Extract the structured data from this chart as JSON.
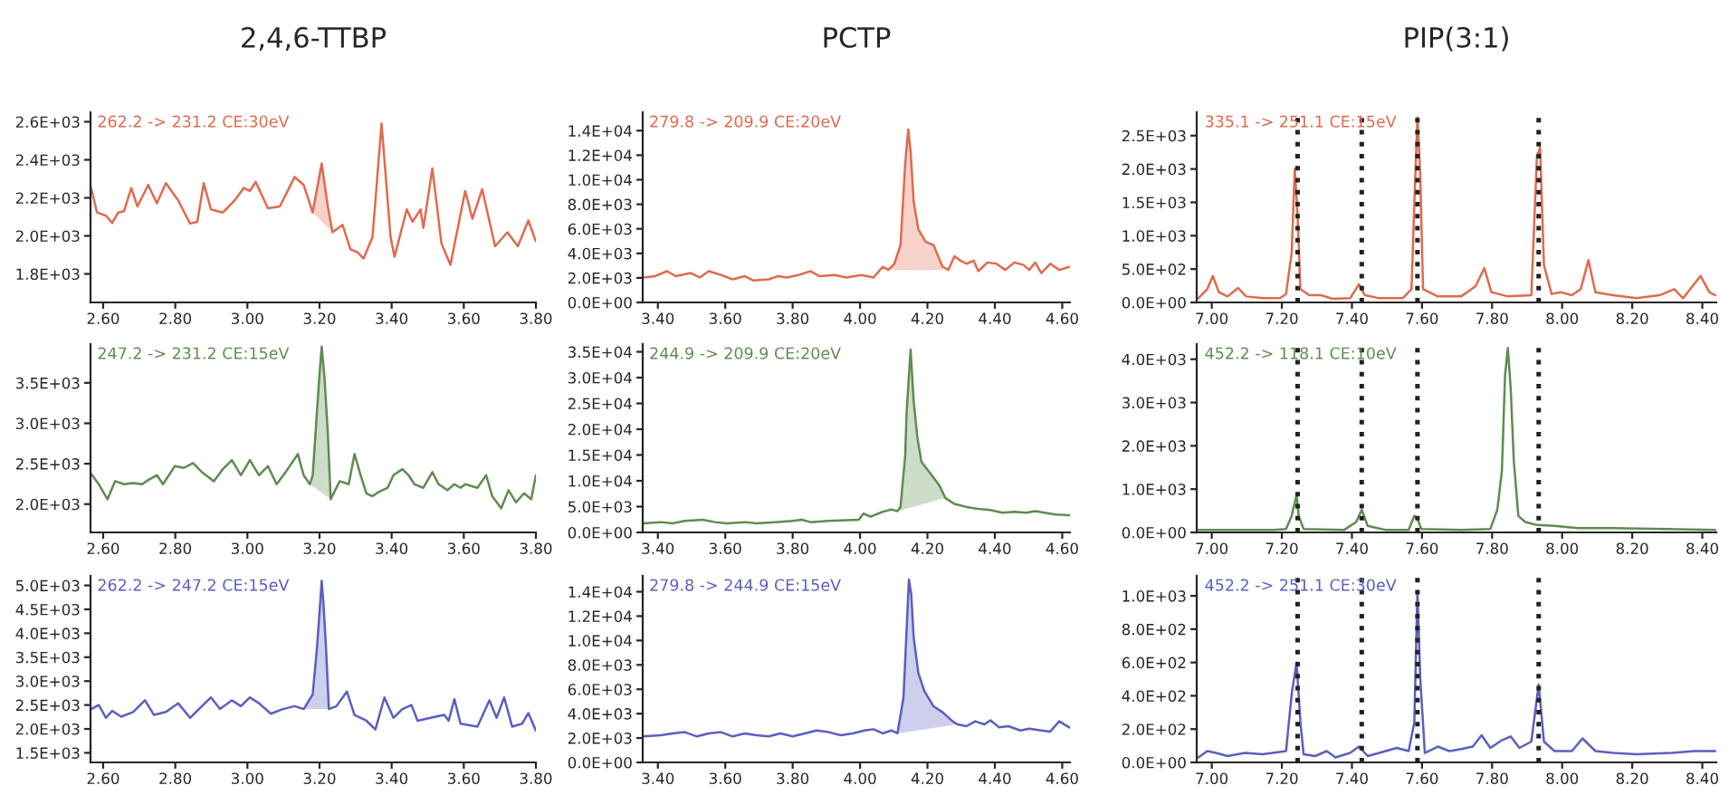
{
  "chart_data": [
    {
      "type": "line",
      "title": "2,4,6-TTBP",
      "annotations": [
        "262.2 -> 231.2 CE:30eV"
      ],
      "xlim": [
        2.565,
        3.8
      ],
      "ylim": [
        1650,
        2650
      ],
      "xticks": [
        {
          "value": 2.6,
          "label": "2.60"
        },
        {
          "value": 2.8,
          "label": "2.80"
        },
        {
          "value": 3.0,
          "label": "3.00"
        },
        {
          "value": 3.2,
          "label": "3.20"
        },
        {
          "value": 3.4,
          "label": "3.40"
        },
        {
          "value": 3.6,
          "label": "3.60"
        },
        {
          "value": 3.8,
          "label": "3.80"
        }
      ],
      "yticks": [
        {
          "value": 1800,
          "label": "1.8E+03"
        },
        {
          "value": 2000,
          "label": "2.0E+03"
        },
        {
          "value": 2200,
          "label": "2.2E+03"
        },
        {
          "value": 2400,
          "label": "2.4E+03"
        },
        {
          "value": 2600,
          "label": "2.6E+03"
        }
      ],
      "x": [
        2.567,
        2.583,
        2.608,
        2.625,
        2.642,
        2.658,
        2.678,
        2.695,
        2.725,
        2.749,
        2.774,
        2.808,
        2.841,
        2.861,
        2.879,
        2.899,
        2.932,
        2.965,
        2.99,
        3.007,
        3.023,
        3.057,
        3.09,
        3.131,
        3.156,
        3.181,
        3.206,
        3.223,
        3.236,
        3.264,
        3.286,
        3.306,
        3.322,
        3.347,
        3.372,
        3.397,
        3.408,
        3.442,
        3.458,
        3.48,
        3.488,
        3.513,
        3.538,
        3.563,
        3.604,
        3.624,
        3.651,
        3.687,
        3.721,
        3.75,
        3.779,
        3.8
      ],
      "series": [
        {
          "color": "#e06a4e",
          "values": [
            2250,
            2123,
            2106,
            2068,
            2123,
            2130,
            2252,
            2155,
            2268,
            2171,
            2277,
            2187,
            2065,
            2074,
            2277,
            2139,
            2123,
            2187,
            2252,
            2236,
            2284,
            2145,
            2155,
            2310,
            2268,
            2123,
            2381,
            2155,
            2019,
            2058,
            1929,
            1913,
            1881,
            1994,
            2590,
            1994,
            1890,
            2139,
            2074,
            2139,
            2042,
            2355,
            1961,
            1848,
            2236,
            2090,
            2245,
            1945,
            2019,
            1945,
            2081,
            1971
          ],
          "lower": [
            null,
            null,
            null,
            null,
            null,
            null,
            null,
            null,
            null,
            null,
            null,
            null,
            null,
            null,
            null,
            null,
            null,
            null,
            null,
            null,
            null,
            null,
            null,
            null,
            null,
            2123,
            2076,
            2044,
            2019,
            null,
            null,
            null,
            null,
            null,
            null,
            null,
            null,
            null,
            null,
            null,
            null,
            null,
            null,
            null,
            null,
            null,
            null,
            null,
            null,
            null,
            null,
            null
          ],
          "upper": [
            null,
            null,
            null,
            null,
            null,
            null,
            null,
            null,
            null,
            null,
            null,
            null,
            null,
            null,
            null,
            null,
            null,
            null,
            null,
            null,
            null,
            null,
            null,
            null,
            null,
            2123,
            2381,
            2155,
            2019,
            null,
            null,
            null,
            null,
            null,
            null,
            null,
            null,
            null,
            null,
            null,
            null,
            null,
            null,
            null,
            null,
            null,
            null,
            null,
            null,
            null,
            null,
            null
          ]
        }
      ]
    },
    {
      "type": "line",
      "title": "PCTP",
      "annotations": [
        "279.8 -> 209.9 CE:20eV"
      ],
      "xlim": [
        3.355,
        4.623
      ],
      "ylim": [
        0,
        15500
      ],
      "xticks": [
        {
          "value": 3.4,
          "label": "3.40"
        },
        {
          "value": 3.6,
          "label": "3.60"
        },
        {
          "value": 3.8,
          "label": "3.80"
        },
        {
          "value": 4.0,
          "label": "4.00"
        },
        {
          "value": 4.2,
          "label": "4.20"
        },
        {
          "value": 4.4,
          "label": "4.40"
        },
        {
          "value": 4.6,
          "label": "4.60"
        }
      ],
      "yticks": [
        {
          "value": 0,
          "label": "0.0E+00"
        },
        {
          "value": 2000,
          "label": "2.0E+03"
        },
        {
          "value": 4000,
          "label": "4.0E+03"
        },
        {
          "value": 6000,
          "label": "6.0E+03"
        },
        {
          "value": 8000,
          "label": "8.0E+03"
        },
        {
          "value": 10000,
          "label": "1.0E+04"
        },
        {
          "value": 12000,
          "label": "1.2E+04"
        },
        {
          "value": 14000,
          "label": "1.4E+04"
        }
      ],
      "x": [
        3.356,
        3.391,
        3.427,
        3.453,
        3.498,
        3.524,
        3.551,
        3.587,
        3.622,
        3.658,
        3.684,
        3.729,
        3.756,
        3.782,
        3.818,
        3.853,
        3.88,
        3.924,
        3.96,
        4.004,
        4.04,
        4.067,
        4.084,
        4.102,
        4.12,
        4.134,
        4.143,
        4.15,
        4.159,
        4.173,
        4.195,
        4.218,
        4.245,
        4.262,
        4.28,
        4.298,
        4.316,
        4.337,
        4.351,
        4.378,
        4.405,
        4.431,
        4.458,
        4.485,
        4.502,
        4.52,
        4.538,
        4.565,
        4.591,
        4.621
      ],
      "series": [
        {
          "color": "#e06a4e",
          "values": [
            2036,
            2138,
            2545,
            2138,
            2392,
            2036,
            2545,
            2240,
            1883,
            2138,
            1782,
            1883,
            2138,
            2036,
            2240,
            2545,
            2138,
            2240,
            2036,
            2240,
            2036,
            2901,
            2647,
            3156,
            4683,
            11300,
            14100,
            12318,
            8246,
            5955,
            4937,
            4683,
            2901,
            2647,
            3767,
            3410,
            3156,
            3410,
            2545,
            3257,
            3156,
            2647,
            3257,
            3054,
            2647,
            3257,
            2392,
            3156,
            2647,
            2901
          ],
          "lower": [
            null,
            null,
            null,
            null,
            null,
            null,
            null,
            null,
            null,
            null,
            null,
            null,
            null,
            null,
            null,
            null,
            null,
            null,
            null,
            null,
            null,
            null,
            2640,
            2640,
            2640,
            2640,
            2640,
            2640,
            2640,
            2640,
            2640,
            2640,
            2640,
            null,
            null,
            null,
            null,
            null,
            null,
            null,
            null,
            null,
            null,
            null,
            null,
            null,
            null,
            null,
            null,
            null
          ],
          "upper": [
            null,
            null,
            null,
            null,
            null,
            null,
            null,
            null,
            null,
            null,
            null,
            null,
            null,
            null,
            null,
            null,
            null,
            null,
            null,
            null,
            null,
            null,
            2647,
            3156,
            4683,
            11300,
            14100,
            12318,
            8246,
            5955,
            4937,
            4683,
            2901,
            null,
            null,
            null,
            null,
            null,
            null,
            null,
            null,
            null,
            null,
            null,
            null,
            null,
            null,
            null,
            null,
            null
          ]
        }
      ]
    },
    {
      "type": "line",
      "title": "PIP(3:1)",
      "annotations": [
        "335.1 -> 251.1 CE:15eV"
      ],
      "xlim": [
        6.957,
        8.44
      ],
      "ylim": [
        0,
        2850
      ],
      "xticks": [
        {
          "value": 7.0,
          "label": "7.00"
        },
        {
          "value": 7.2,
          "label": "7.20"
        },
        {
          "value": 7.4,
          "label": "7.40"
        },
        {
          "value": 7.6,
          "label": "7.60"
        },
        {
          "value": 7.8,
          "label": "7.80"
        },
        {
          "value": 8.0,
          "label": "8.00"
        },
        {
          "value": 8.2,
          "label": "8.20"
        },
        {
          "value": 8.4,
          "label": "8.40"
        }
      ],
      "yticks": [
        {
          "value": 0,
          "label": "0.0E+00"
        },
        {
          "value": 500,
          "label": "5.0E+02"
        },
        {
          "value": 1000,
          "label": "1.0E+03"
        },
        {
          "value": 1500,
          "label": "1.5E+03"
        },
        {
          "value": 2000,
          "label": "2.0E+03"
        },
        {
          "value": 2500,
          "label": "2.5E+03"
        }
      ],
      "ref_lines": [
        {
          "axis": "x",
          "value": 7.245,
          "color": "#222222",
          "line_style": "dotted"
        },
        {
          "axis": "x",
          "value": 7.428,
          "color": "#222222",
          "line_style": "dotted"
        },
        {
          "axis": "x",
          "value": 7.587,
          "color": "#222222",
          "line_style": "dotted"
        },
        {
          "axis": "x",
          "value": 7.933,
          "color": "#222222",
          "line_style": "dotted"
        }
      ],
      "x": [
        6.962,
        6.987,
        7.003,
        7.02,
        7.045,
        7.075,
        7.098,
        7.145,
        7.195,
        7.212,
        7.228,
        7.237,
        7.245,
        7.253,
        7.278,
        7.312,
        7.345,
        7.395,
        7.42,
        7.437,
        7.478,
        7.545,
        7.57,
        7.578,
        7.587,
        7.595,
        7.603,
        7.645,
        7.712,
        7.753,
        7.778,
        7.798,
        7.845,
        7.912,
        7.928,
        7.937,
        7.948,
        7.97,
        7.995,
        8.028,
        8.053,
        8.075,
        8.095,
        8.145,
        8.212,
        8.278,
        8.32,
        8.345,
        8.395,
        8.42,
        8.437
      ],
      "series": [
        {
          "color": "#e06a4e",
          "values": [
            63,
            199,
            398,
            154,
            90,
            217,
            90,
            63,
            63,
            127,
            741,
            2007,
            1284,
            199,
            108,
            108,
            54,
            63,
            271,
            108,
            63,
            63,
            199,
            1464,
            2775,
            1916,
            199,
            90,
            90,
            244,
            515,
            154,
            90,
            108,
            2188,
            2323,
            560,
            127,
            154,
            108,
            199,
            633,
            154,
            108,
            63,
            108,
            199,
            63,
            398,
            154,
            108
          ]
        }
      ]
    },
    {
      "type": "line",
      "annotations": [
        "247.2 -> 231.2 CE:15eV"
      ],
      "xlim": [
        2.565,
        3.8
      ],
      "ylim": [
        1650,
        3980
      ],
      "xticks": [
        {
          "value": 2.6,
          "label": "2.60"
        },
        {
          "value": 2.8,
          "label": "2.80"
        },
        {
          "value": 3.0,
          "label": "3.00"
        },
        {
          "value": 3.2,
          "label": "3.20"
        },
        {
          "value": 3.4,
          "label": "3.40"
        },
        {
          "value": 3.6,
          "label": "3.60"
        },
        {
          "value": 3.8,
          "label": "3.80"
        }
      ],
      "yticks": [
        {
          "value": 2000,
          "label": "2.0E+03"
        },
        {
          "value": 2500,
          "label": "2.5E+03"
        },
        {
          "value": 3000,
          "label": "3.0E+03"
        },
        {
          "value": 3500,
          "label": "3.5E+03"
        }
      ],
      "x": [
        2.567,
        2.588,
        2.612,
        2.633,
        2.658,
        2.683,
        2.708,
        2.725,
        2.749,
        2.766,
        2.799,
        2.824,
        2.849,
        2.874,
        2.907,
        2.932,
        2.957,
        2.982,
        3.007,
        3.032,
        3.057,
        3.081,
        3.106,
        3.14,
        3.156,
        3.173,
        3.181,
        3.189,
        3.199,
        3.206,
        3.214,
        3.223,
        3.231,
        3.256,
        3.281,
        3.297,
        3.314,
        3.33,
        3.347,
        3.364,
        3.389,
        3.405,
        3.43,
        3.447,
        3.463,
        3.488,
        3.513,
        3.53,
        3.555,
        3.574,
        3.591,
        3.604,
        3.638,
        3.662,
        3.679,
        3.704,
        3.724,
        3.745,
        3.767,
        3.787,
        3.8
      ],
      "series": [
        {
          "color": "#5e8c50",
          "values": [
            2374,
            2246,
            2060,
            2284,
            2246,
            2260,
            2246,
            2298,
            2358,
            2246,
            2470,
            2448,
            2508,
            2396,
            2284,
            2433,
            2545,
            2358,
            2545,
            2358,
            2470,
            2246,
            2396,
            2620,
            2358,
            2246,
            2350,
            2880,
            3552,
            3948,
            3552,
            2880,
            2060,
            2284,
            2246,
            2620,
            2358,
            2134,
            2097,
            2150,
            2202,
            2358,
            2433,
            2358,
            2246,
            2202,
            2396,
            2246,
            2172,
            2246,
            2202,
            2246,
            2202,
            2358,
            2097,
            1948,
            2172,
            2022,
            2134,
            2060,
            2358
          ],
          "lower": [
            null,
            null,
            null,
            null,
            null,
            null,
            null,
            null,
            null,
            null,
            null,
            null,
            null,
            null,
            null,
            null,
            null,
            null,
            null,
            null,
            null,
            null,
            null,
            null,
            null,
            2246,
            2220,
            2195,
            2163,
            2140,
            2114,
            2086,
            2060,
            null,
            null,
            null,
            null,
            null,
            null,
            null,
            null,
            null,
            null,
            null,
            null,
            null,
            null,
            null,
            null,
            null,
            null,
            null,
            null,
            null,
            null,
            null,
            null,
            null,
            null,
            null,
            null
          ],
          "upper": [
            null,
            null,
            null,
            null,
            null,
            null,
            null,
            null,
            null,
            null,
            null,
            null,
            null,
            null,
            null,
            null,
            null,
            null,
            null,
            null,
            null,
            null,
            null,
            null,
            null,
            2246,
            2350,
            2880,
            3552,
            3948,
            3552,
            2880,
            2060,
            null,
            null,
            null,
            null,
            null,
            null,
            null,
            null,
            null,
            null,
            null,
            null,
            null,
            null,
            null,
            null,
            null,
            null,
            null,
            null,
            null,
            null,
            null,
            null,
            null,
            null,
            null,
            null
          ]
        }
      ]
    },
    {
      "type": "line",
      "annotations": [
        "244.9 -> 209.9 CE:20eV"
      ],
      "xlim": [
        3.355,
        4.623
      ],
      "ylim": [
        0,
        36500
      ],
      "xticks": [
        {
          "value": 3.4,
          "label": "3.40"
        },
        {
          "value": 3.6,
          "label": "3.60"
        },
        {
          "value": 3.8,
          "label": "3.80"
        },
        {
          "value": 4.0,
          "label": "4.00"
        },
        {
          "value": 4.2,
          "label": "4.20"
        },
        {
          "value": 4.4,
          "label": "4.40"
        },
        {
          "value": 4.6,
          "label": "4.60"
        }
      ],
      "yticks": [
        {
          "value": 0,
          "label": "0.0E+00"
        },
        {
          "value": 5000,
          "label": "5.0E+03"
        },
        {
          "value": 10000,
          "label": "1.0E+04"
        },
        {
          "value": 15000,
          "label": "1.5E+04"
        },
        {
          "value": 20000,
          "label": "2.0E+04"
        },
        {
          "value": 25000,
          "label": "2.5E+04"
        },
        {
          "value": 30000,
          "label": "3.0E+04"
        },
        {
          "value": 35000,
          "label": "3.5E+04"
        }
      ],
      "x": [
        3.356,
        3.409,
        3.444,
        3.48,
        3.533,
        3.569,
        3.604,
        3.658,
        3.693,
        3.747,
        3.8,
        3.827,
        3.853,
        3.907,
        3.96,
        3.996,
        4.01,
        4.031,
        4.067,
        4.093,
        4.111,
        4.12,
        4.134,
        4.138,
        4.15,
        4.159,
        4.17,
        4.182,
        4.209,
        4.236,
        4.253,
        4.266,
        4.28,
        4.316,
        4.351,
        4.387,
        4.422,
        4.458,
        4.493,
        4.52,
        4.547,
        4.582,
        4.621
      ],
      "series": [
        {
          "color": "#5e8c50",
          "values": [
            1760,
            1995,
            1760,
            2230,
            2465,
            1995,
            1760,
            1995,
            1760,
            1995,
            2230,
            2465,
            1995,
            2230,
            2350,
            2465,
            3638,
            3050,
            3990,
            4460,
            4110,
            4930,
            14900,
            23100,
            35450,
            25500,
            18400,
            13700,
            11400,
            9050,
            6690,
            6120,
            5530,
            4930,
            4580,
            4340,
            3810,
            4000,
            3810,
            4110,
            3810,
            3460,
            3350
          ],
          "lower": [
            null,
            null,
            null,
            null,
            null,
            null,
            null,
            null,
            null,
            null,
            null,
            null,
            null,
            null,
            null,
            null,
            null,
            null,
            null,
            null,
            4110,
            4273,
            4528,
            4600,
            4820,
            4982,
            5181,
            5400,
            5890,
            6393,
            6690,
            null,
            null,
            null,
            null,
            null,
            null,
            null,
            null,
            null,
            null,
            null,
            null
          ],
          "upper": [
            null,
            null,
            null,
            null,
            null,
            null,
            null,
            null,
            null,
            null,
            null,
            null,
            null,
            null,
            null,
            null,
            null,
            null,
            null,
            null,
            4110,
            4930,
            14900,
            23100,
            35450,
            25500,
            18400,
            13700,
            11400,
            9050,
            6690,
            null,
            null,
            null,
            null,
            null,
            null,
            null,
            null,
            null,
            null,
            null,
            null
          ]
        }
      ]
    },
    {
      "type": "line",
      "annotations": [
        "452.2 -> 118.1 CE:10eV"
      ],
      "xlim": [
        6.957,
        8.44
      ],
      "ylim": [
        0,
        4350
      ],
      "xticks": [
        {
          "value": 7.0,
          "label": "7.00"
        },
        {
          "value": 7.2,
          "label": "7.20"
        },
        {
          "value": 7.4,
          "label": "7.40"
        },
        {
          "value": 7.6,
          "label": "7.60"
        },
        {
          "value": 7.8,
          "label": "7.80"
        },
        {
          "value": 8.0,
          "label": "8.00"
        },
        {
          "value": 8.2,
          "label": "8.20"
        },
        {
          "value": 8.4,
          "label": "8.40"
        }
      ],
      "yticks": [
        {
          "value": 0,
          "label": "0.0E+00"
        },
        {
          "value": 1000,
          "label": "1.0E+03"
        },
        {
          "value": 2000,
          "label": "2.0E+03"
        },
        {
          "value": 3000,
          "label": "3.0E+03"
        },
        {
          "value": 4000,
          "label": "4.0E+03"
        }
      ],
      "ref_lines": [
        {
          "axis": "x",
          "value": 7.245,
          "color": "#222222",
          "line_style": "dotted"
        },
        {
          "axis": "x",
          "value": 7.428,
          "color": "#222222",
          "line_style": "dotted"
        },
        {
          "axis": "x",
          "value": 7.587,
          "color": "#222222",
          "line_style": "dotted"
        },
        {
          "axis": "x",
          "value": 7.933,
          "color": "#222222",
          "line_style": "dotted"
        }
      ],
      "x": [
        6.962,
        7.045,
        7.178,
        7.212,
        7.228,
        7.242,
        7.248,
        7.262,
        7.378,
        7.412,
        7.428,
        7.445,
        7.495,
        7.562,
        7.578,
        7.587,
        7.598,
        7.712,
        7.795,
        7.815,
        7.828,
        7.837,
        7.845,
        7.853,
        7.862,
        7.875,
        7.895,
        7.928,
        7.978,
        8.045,
        8.145,
        8.295,
        8.437
      ],
      "series": [
        {
          "color": "#5e8c50",
          "values": [
            60,
            60,
            60,
            80,
            380,
            875,
            380,
            80,
            60,
            240,
            525,
            150,
            60,
            60,
            380,
            310,
            80,
            60,
            80,
            525,
            1425,
            3625,
            4260,
            3340,
            1650,
            380,
            240,
            170,
            150,
            100,
            100,
            80,
            60
          ]
        }
      ]
    },
    {
      "type": "line",
      "annotations": [
        "262.2 -> 247.2 CE:15eV"
      ],
      "xlim": [
        2.565,
        3.8
      ],
      "ylim": [
        1300,
        5200
      ],
      "xticks": [
        {
          "value": 2.6,
          "label": "2.60"
        },
        {
          "value": 2.8,
          "label": "2.80"
        },
        {
          "value": 3.0,
          "label": "3.00"
        },
        {
          "value": 3.2,
          "label": "3.20"
        },
        {
          "value": 3.4,
          "label": "3.40"
        },
        {
          "value": 3.6,
          "label": "3.60"
        },
        {
          "value": 3.8,
          "label": "3.80"
        }
      ],
      "yticks": [
        {
          "value": 1500,
          "label": "1.5E+03"
        },
        {
          "value": 2000,
          "label": "2.0E+03"
        },
        {
          "value": 2500,
          "label": "2.5E+03"
        },
        {
          "value": 3000,
          "label": "3.0E+03"
        },
        {
          "value": 3500,
          "label": "3.5E+03"
        },
        {
          "value": 4000,
          "label": "4.0E+03"
        },
        {
          "value": 4500,
          "label": "4.5E+03"
        },
        {
          "value": 5000,
          "label": "5.0E+03"
        }
      ],
      "x": [
        2.567,
        2.588,
        2.608,
        2.625,
        2.65,
        2.683,
        2.716,
        2.741,
        2.774,
        2.808,
        2.841,
        2.874,
        2.899,
        2.924,
        2.957,
        2.982,
        3.007,
        3.032,
        3.065,
        3.098,
        3.131,
        3.156,
        3.181,
        3.193,
        3.201,
        3.206,
        3.211,
        3.218,
        3.226,
        3.247,
        3.276,
        3.297,
        3.33,
        3.355,
        3.38,
        3.405,
        3.43,
        3.455,
        3.472,
        3.508,
        3.546,
        3.558,
        3.574,
        3.591,
        3.638,
        3.671,
        3.691,
        3.712,
        3.734,
        3.762,
        3.779,
        3.8
      ],
      "series": [
        {
          "color": "#5a5fc0",
          "values": [
            2415,
            2500,
            2232,
            2378,
            2256,
            2354,
            2598,
            2293,
            2354,
            2537,
            2232,
            2476,
            2659,
            2415,
            2598,
            2476,
            2659,
            2537,
            2317,
            2415,
            2476,
            2415,
            2720,
            3696,
            4549,
            5098,
            4610,
            3696,
            2415,
            2476,
            2781,
            2293,
            2171,
            1988,
            2659,
            2232,
            2415,
            2500,
            2171,
            2232,
            2293,
            2171,
            2622,
            2110,
            2049,
            2598,
            2232,
            2659,
            2049,
            2110,
            2330,
            1964
          ],
          "lower": [
            null,
            null,
            null,
            null,
            null,
            null,
            null,
            null,
            null,
            null,
            null,
            null,
            null,
            null,
            null,
            null,
            null,
            null,
            null,
            null,
            null,
            2415,
            2415,
            2415,
            2415,
            2415,
            2415,
            2415,
            2415,
            null,
            null,
            null,
            null,
            null,
            null,
            null,
            null,
            null,
            null,
            null,
            null,
            null,
            null,
            null,
            null,
            null,
            null,
            null,
            null,
            null,
            null,
            null
          ],
          "upper": [
            null,
            null,
            null,
            null,
            null,
            null,
            null,
            null,
            null,
            null,
            null,
            null,
            null,
            null,
            null,
            null,
            null,
            null,
            null,
            null,
            null,
            2415,
            2720,
            3696,
            4549,
            5098,
            4610,
            3696,
            2415,
            null,
            null,
            null,
            null,
            null,
            null,
            null,
            null,
            null,
            null,
            null,
            null,
            null,
            null,
            null,
            null,
            null,
            null,
            null,
            null,
            null,
            null,
            null
          ]
        }
      ]
    },
    {
      "type": "line",
      "annotations": [
        "279.8 -> 244.9 CE:15eV"
      ],
      "xlim": [
        3.355,
        4.623
      ],
      "ylim": [
        0,
        15300
      ],
      "xticks": [
        {
          "value": 3.4,
          "label": "3.40"
        },
        {
          "value": 3.6,
          "label": "3.60"
        },
        {
          "value": 3.8,
          "label": "3.80"
        },
        {
          "value": 4.0,
          "label": "4.00"
        },
        {
          "value": 4.2,
          "label": "4.20"
        },
        {
          "value": 4.4,
          "label": "4.40"
        },
        {
          "value": 4.6,
          "label": "4.60"
        }
      ],
      "yticks": [
        {
          "value": 0,
          "label": "0.0E+00"
        },
        {
          "value": 2000,
          "label": "2.0E+03"
        },
        {
          "value": 4000,
          "label": "4.0E+03"
        },
        {
          "value": 6000,
          "label": "6.0E+03"
        },
        {
          "value": 8000,
          "label": "8.0E+03"
        },
        {
          "value": 10000,
          "label": "1.0E+04"
        },
        {
          "value": 12000,
          "label": "1.2E+04"
        },
        {
          "value": 14000,
          "label": "1.4E+04"
        }
      ],
      "x": [
        3.356,
        3.409,
        3.444,
        3.48,
        3.516,
        3.551,
        3.587,
        3.622,
        3.658,
        3.693,
        3.729,
        3.764,
        3.8,
        3.836,
        3.871,
        3.907,
        3.942,
        3.978,
        4.013,
        4.04,
        4.067,
        4.093,
        4.111,
        4.129,
        4.138,
        4.145,
        4.152,
        4.159,
        4.173,
        4.191,
        4.218,
        4.245,
        4.271,
        4.289,
        4.316,
        4.342,
        4.369,
        4.387,
        4.413,
        4.44,
        4.476,
        4.502,
        4.538,
        4.564,
        4.591,
        4.621
      ],
      "series": [
        {
          "color": "#5a5fc0",
          "values": [
            2130,
            2230,
            2380,
            2480,
            2130,
            2380,
            2480,
            2130,
            2380,
            2230,
            2130,
            2380,
            2130,
            2380,
            2620,
            2480,
            2230,
            2380,
            2620,
            2720,
            2380,
            2620,
            2380,
            5350,
            10800,
            15000,
            13760,
            10300,
            7330,
            5840,
            4600,
            4110,
            3460,
            3120,
            2970,
            3370,
            3120,
            3460,
            2870,
            2970,
            2620,
            2770,
            2620,
            2520,
            3370,
            2870
          ],
          "lower": [
            null,
            null,
            null,
            null,
            null,
            null,
            null,
            null,
            null,
            null,
            null,
            null,
            null,
            null,
            null,
            null,
            null,
            null,
            null,
            null,
            null,
            null,
            2380,
            2455,
            2492,
            2521,
            2550,
            2580,
            2638,
            2712,
            2825,
            2937,
            3045,
            3120,
            null,
            null,
            null,
            null,
            null,
            null,
            null,
            null,
            null,
            null,
            null,
            null
          ],
          "upper": [
            null,
            null,
            null,
            null,
            null,
            null,
            null,
            null,
            null,
            null,
            null,
            null,
            null,
            null,
            null,
            null,
            null,
            null,
            null,
            null,
            null,
            null,
            2380,
            5350,
            10800,
            15000,
            13760,
            10300,
            7330,
            5840,
            4600,
            4110,
            3460,
            3120,
            null,
            null,
            null,
            null,
            null,
            null,
            null,
            null,
            null,
            null,
            null,
            null
          ]
        }
      ]
    },
    {
      "type": "line",
      "annotations": [
        "452.2 -> 251.1 CE:30eV"
      ],
      "xlim": [
        6.957,
        8.44
      ],
      "ylim": [
        0,
        1120
      ],
      "xticks": [
        {
          "value": 7.0,
          "label": "7.00"
        },
        {
          "value": 7.2,
          "label": "7.20"
        },
        {
          "value": 7.4,
          "label": "7.40"
        },
        {
          "value": 7.6,
          "label": "7.60"
        },
        {
          "value": 7.8,
          "label": "7.80"
        },
        {
          "value": 8.0,
          "label": "8.00"
        },
        {
          "value": 8.2,
          "label": "8.20"
        },
        {
          "value": 8.4,
          "label": "8.40"
        }
      ],
      "yticks": [
        {
          "value": 0,
          "label": "0.0E+00"
        },
        {
          "value": 200,
          "label": "2.0E+02"
        },
        {
          "value": 400,
          "label": "4.0E+02"
        },
        {
          "value": 600,
          "label": "6.0E+02"
        },
        {
          "value": 800,
          "label": "8.0E+02"
        },
        {
          "value": 1000,
          "label": "1.0E+03"
        }
      ],
      "ref_lines": [
        {
          "axis": "x",
          "value": 7.245,
          "color": "#222222",
          "line_style": "dotted"
        },
        {
          "axis": "x",
          "value": 7.428,
          "color": "#222222",
          "line_style": "dotted"
        },
        {
          "axis": "x",
          "value": 7.587,
          "color": "#222222",
          "line_style": "dotted"
        },
        {
          "axis": "x",
          "value": 7.933,
          "color": "#222222",
          "line_style": "dotted"
        }
      ],
      "x": [
        6.962,
        6.987,
        7.012,
        7.045,
        7.095,
        7.145,
        7.212,
        7.228,
        7.242,
        7.253,
        7.262,
        7.295,
        7.328,
        7.353,
        7.395,
        7.42,
        7.445,
        7.478,
        7.528,
        7.562,
        7.578,
        7.587,
        7.595,
        7.608,
        7.645,
        7.678,
        7.712,
        7.745,
        7.77,
        7.795,
        7.828,
        7.853,
        7.878,
        7.912,
        7.933,
        7.948,
        7.978,
        8.028,
        8.058,
        8.095,
        8.145,
        8.212,
        8.312,
        8.378,
        8.437
      ],
      "series": [
        {
          "color": "#5a5fc0",
          "values": [
            30,
            68,
            57,
            38,
            57,
            49,
            68,
            410,
            600,
            240,
            49,
            38,
            68,
            30,
            57,
            95,
            38,
            57,
            87,
            68,
            240,
            1018,
            505,
            57,
            95,
            68,
            80,
            95,
            163,
            87,
            133,
            156,
            87,
            125,
            467,
            125,
            68,
            68,
            144,
            68,
            57,
            49,
            57,
            68,
            68
          ]
        }
      ]
    }
  ]
}
